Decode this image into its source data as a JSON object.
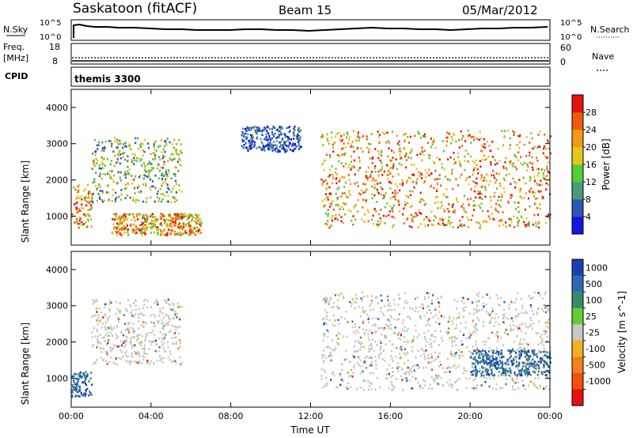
{
  "header": {
    "title": "Saskatoon (fitACF)",
    "beam": "Beam 15",
    "date": "05/Mar/2012"
  },
  "status_panels": {
    "nsky_label": "N.Sky",
    "nsky_top": "10^5",
    "nsky_bottom": "10^0",
    "nsearch_label": "N.Search",
    "nsearch_top": "10^5",
    "nsearch_bottom": "10^0",
    "freq_label": "Freq.",
    "freq_unit": "[MHz]",
    "freq_top": "18",
    "freq_bottom": "8",
    "nave_label": "Nave",
    "nave_top": "60",
    "nave_bottom": "0",
    "cpid_label": "CPID",
    "cpid_value": "themis 3300"
  },
  "time_axis": {
    "label": "Time UT",
    "ticks": [
      "00:00",
      "04:00",
      "08:00",
      "12:00",
      "16:00",
      "20:00",
      "00:00"
    ]
  },
  "colors": {
    "power": [
      "#1515e6",
      "#2b56b5",
      "#4a9a7a",
      "#55cc33",
      "#e6c61a",
      "#f09a18",
      "#f05a10",
      "#e61010"
    ],
    "velocity": [
      "#1c3fb0",
      "#2a6ab4",
      "#3a8a6a",
      "#66cc33",
      "#c8c8c0",
      "#f0b020",
      "#f08020",
      "#f05010",
      "#e61010"
    ]
  },
  "chart_data": [
    {
      "type": "heatmap",
      "panel": "power",
      "title": "",
      "xlabel": "",
      "ylabel": "Slant Range [km]",
      "xlim": [
        0,
        24
      ],
      "ylim": [
        200,
        4500
      ],
      "yticks": [
        "1000",
        "2000",
        "3000",
        "4000"
      ],
      "colorbar_label": "Power [dB]",
      "colorbar_ticks": [
        "4",
        "8",
        "12",
        "16",
        "20",
        "24",
        "28"
      ],
      "colorbar_range": [
        0,
        32
      ],
      "scatter_regions": [
        {
          "t0": 0.0,
          "t1": 1.0,
          "r_lo": 700,
          "r_hi": 1900,
          "level": "high"
        },
        {
          "t0": 1.0,
          "t1": 5.5,
          "r_lo": 1400,
          "r_hi": 3200,
          "level": "mid"
        },
        {
          "t0": 2.0,
          "t1": 6.5,
          "r_lo": 500,
          "r_hi": 1100,
          "level": "high"
        },
        {
          "t0": 8.5,
          "t1": 11.5,
          "r_lo": 2800,
          "r_hi": 3500,
          "level": "low"
        },
        {
          "t0": 12.5,
          "t1": 24.0,
          "r_lo": 700,
          "r_hi": 3400,
          "level": "high"
        }
      ]
    },
    {
      "type": "heatmap",
      "panel": "velocity",
      "title": "",
      "xlabel": "Time UT",
      "ylabel": "Slant Range [km]",
      "xlim": [
        0,
        24
      ],
      "ylim": [
        200,
        4500
      ],
      "yticks": [
        "1000",
        "2000",
        "3000",
        "4000"
      ],
      "colorbar_label": "Velocity [m s^-1]",
      "colorbar_ticks": [
        "1000",
        "500",
        "100",
        "25",
        "-25",
        "-100",
        "-500",
        "-1000"
      ],
      "scatter_regions": [
        {
          "t0": 0.0,
          "t1": 1.0,
          "r_lo": 500,
          "r_hi": 1200,
          "level": "positive"
        },
        {
          "t0": 1.0,
          "t1": 5.5,
          "r_lo": 1400,
          "r_hi": 3200,
          "level": "near-zero"
        },
        {
          "t0": 12.5,
          "t1": 24.0,
          "r_lo": 700,
          "r_hi": 3400,
          "level": "near-zero"
        },
        {
          "t0": 20.0,
          "t1": 24.0,
          "r_lo": 1100,
          "r_hi": 1800,
          "level": "positive"
        }
      ]
    }
  ]
}
